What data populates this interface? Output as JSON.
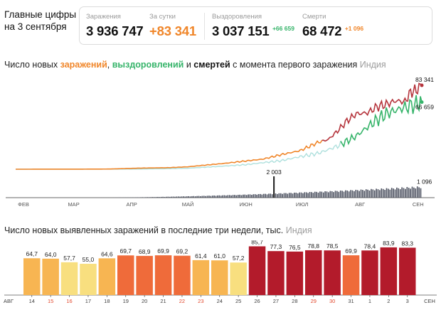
{
  "header": {
    "line1": "Главные цифры",
    "line2": "на 3 сентября"
  },
  "stats": {
    "infected": {
      "label": "Заражения",
      "value": "3 936 747"
    },
    "daily": {
      "label": "За сутки",
      "value": "+83 341"
    },
    "recovered": {
      "label": "Выздоровления",
      "value": "3 037 151",
      "delta": "+66 659"
    },
    "deaths": {
      "label": "Смерти",
      "value": "68 472",
      "delta": "+1 096"
    }
  },
  "colors": {
    "infections": "#f0862a",
    "recoveries": "#36b46a",
    "deaths": "#1c1c1c",
    "country": "#9c9c9c",
    "bar_low": "#f8df7f",
    "bar_mid": "#f7b552",
    "bar_high": "#ef6b3a",
    "bar_peak": "#b31b2b",
    "weekend_tick": "#e2482d"
  },
  "chart1": {
    "title_prefix": "Число новых ",
    "title_infections": "заражений",
    "title_sep1": ", ",
    "title_recoveries": "выздоровлений",
    "title_sep2": " и ",
    "title_deaths": "смертей",
    "title_suffix": " с момента первого заражения",
    "country": "Индия"
  },
  "chart2": {
    "title": "Число новых выявленных заражений в последние три недели, тыс.",
    "country": "Индия"
  },
  "chart_data": [
    {
      "type": "line",
      "x_ticks": [
        "ФЕВ",
        "МАР",
        "АПР",
        "МАЙ",
        "ИЮН",
        "ИЮЛ",
        "АВГ",
        "СЕН"
      ],
      "series": [
        {
          "name": "заражений",
          "x": [
            "2020-01-30",
            "2020-03-01",
            "2020-03-20",
            "2020-04-05",
            "2020-04-20",
            "2020-05-01",
            "2020-05-10",
            "2020-05-20",
            "2020-06-01",
            "2020-06-10",
            "2020-06-20",
            "2020-06-30",
            "2020-07-10",
            "2020-07-15",
            "2020-07-20",
            "2020-07-25",
            "2020-07-30",
            "2020-08-05",
            "2020-08-10",
            "2020-08-15",
            "2020-08-20",
            "2020-08-25",
            "2020-08-28",
            "2020-08-31",
            "2020-09-03"
          ],
          "values": [
            1,
            30,
            200,
            1100,
            1500,
            2400,
            4000,
            5700,
            8200,
            10000,
            14500,
            18500,
            27000,
            29500,
            38000,
            48000,
            55000,
            56000,
            62000,
            64500,
            68000,
            67000,
            76500,
            78500,
            83341
          ]
        },
        {
          "name": "выздоровлений",
          "x": [
            "2020-01-30",
            "2020-04-01",
            "2020-04-20",
            "2020-05-01",
            "2020-05-15",
            "2020-06-01",
            "2020-06-10",
            "2020-06-20",
            "2020-06-30",
            "2020-07-10",
            "2020-07-20",
            "2020-07-30",
            "2020-08-05",
            "2020-08-10",
            "2020-08-15",
            "2020-08-20",
            "2020-08-25",
            "2020-08-31",
            "2020-09-03"
          ],
          "values": [
            0,
            100,
            500,
            1000,
            2500,
            4500,
            6500,
            8500,
            12500,
            16000,
            23000,
            33000,
            42000,
            49000,
            55000,
            58500,
            61500,
            64500,
            66659
          ]
        },
        {
          "name": "смертей",
          "bar_values_label": [
            "2 003",
            "1 096"
          ],
          "x": [
            "2020-06-16",
            "2020-09-03"
          ],
          "values": [
            2003,
            1096
          ]
        }
      ],
      "annotations": [
        "83 341",
        "66 659",
        "2 003",
        "1 096"
      ]
    },
    {
      "type": "bar",
      "categories": [
        "14",
        "15",
        "16",
        "17",
        "18",
        "19",
        "20",
        "21",
        "22",
        "23",
        "24",
        "25",
        "26",
        "27",
        "28",
        "29",
        "30",
        "31",
        "1",
        "2",
        "3"
      ],
      "weekend_categories": [
        "15",
        "16",
        "22",
        "23",
        "29",
        "30"
      ],
      "month_labels": [
        "АВГ",
        "СЕН"
      ],
      "values": [
        64.7,
        64.0,
        57.7,
        55.0,
        64.6,
        69.7,
        68.9,
        69.9,
        69.2,
        61.4,
        61.0,
        57.2,
        85.7,
        77.3,
        76.5,
        78.8,
        78.5,
        69.9,
        78.4,
        83.9,
        83.3
      ],
      "labels": [
        "64,7",
        "64,0",
        "57,7",
        "55,0",
        "64,6",
        "69,7",
        "68,9",
        "69,9",
        "69,2",
        "61,4",
        "61,0",
        "57,2",
        "85,7",
        "77,3",
        "76,5",
        "78,8",
        "78,5",
        "69,9",
        "78,4",
        "83,9",
        "83,3"
      ],
      "ylim": [
        0,
        90
      ]
    }
  ]
}
